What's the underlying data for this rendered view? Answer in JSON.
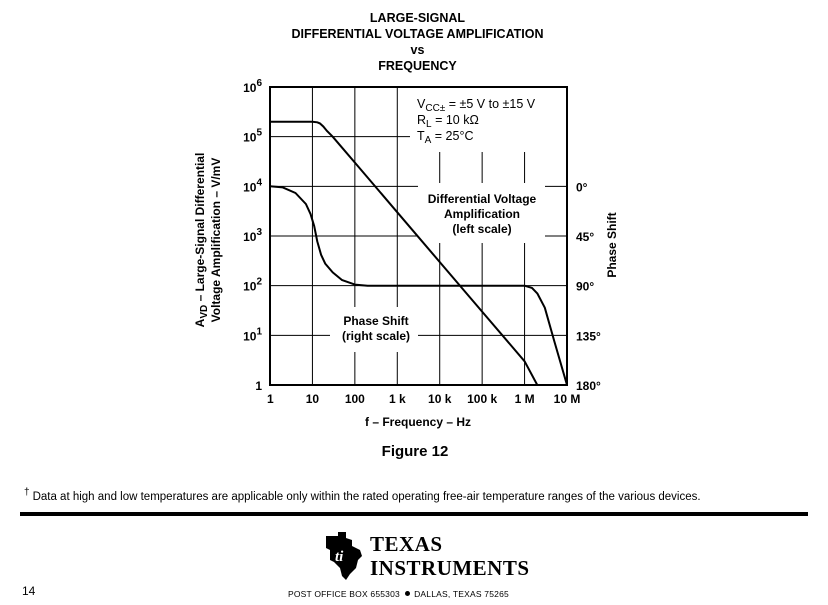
{
  "chart_data": {
    "type": "line",
    "title_lines": [
      "LARGE-SIGNAL",
      "DIFFERENTIAL VOLTAGE AMPLIFICATION",
      "vs",
      "FREQUENCY"
    ],
    "xlabel": "f – Frequency – Hz",
    "ylabel_lines": [
      "A",
      "VD",
      " – Large-Signal Differential",
      "Voltage Amplification – V/mV"
    ],
    "ylabel2": "Phase Shift",
    "x_scale": "log",
    "xlim": [
      1,
      10000000
    ],
    "x_ticks": [
      1,
      10,
      100,
      1000,
      10000,
      100000,
      1000000,
      10000000
    ],
    "x_tick_labels": [
      "1",
      "10",
      "100",
      "1 k",
      "10 k",
      "100 k",
      "1 M",
      "10 M"
    ],
    "y_scale": "log",
    "ylim": [
      1,
      1000000
    ],
    "y_ticks": [
      1,
      10,
      100,
      1000,
      10000,
      100000,
      1000000
    ],
    "y_tick_labels": [
      {
        "base": "1",
        "exp": ""
      },
      {
        "base": "10",
        "exp": "1"
      },
      {
        "base": "10",
        "exp": "2"
      },
      {
        "base": "10",
        "exp": "3"
      },
      {
        "base": "10",
        "exp": "4"
      },
      {
        "base": "10",
        "exp": "5"
      },
      {
        "base": "10",
        "exp": "6"
      }
    ],
    "y2_ticks": [
      0,
      45,
      90,
      135,
      180
    ],
    "y2_tick_labels": [
      "0°",
      "45°",
      "90°",
      "135°",
      "180°"
    ],
    "y2_range_deg": [
      0,
      180
    ],
    "grid": true,
    "conditions": [
      {
        "pre": "V",
        "sub": "CC±",
        "post": " = ±5 V to ±15 V"
      },
      {
        "pre": "R",
        "sub": "L",
        "post": " = 10 kΩ"
      },
      {
        "pre": "T",
        "sub": "A",
        "post": " = 25°C"
      }
    ],
    "annotations": {
      "amplification": [
        "Differential Voltage",
        "Amplification",
        "(left scale)"
      ],
      "phase": [
        "Phase Shift",
        "(right scale)"
      ]
    },
    "series": [
      {
        "axis": "left",
        "x": [
          1,
          10,
          13,
          15,
          18,
          22,
          30,
          50,
          100,
          1000,
          10000,
          100000,
          1000000,
          2000000
        ],
        "y": [
          200000,
          200000,
          195000,
          185000,
          160000,
          130000,
          100000,
          60000,
          30000,
          3000,
          300,
          30,
          3,
          1
        ]
      },
      {
        "axis": "right",
        "x": [
          1,
          2,
          4,
          7,
          9,
          11,
          13,
          16,
          20,
          30,
          50,
          100,
          200,
          1000,
          10000,
          100000,
          1000000,
          1500000,
          2000000,
          3000000,
          5000000,
          10000000
        ],
        "y": [
          0,
          1,
          6,
          16,
          25,
          36,
          50,
          62,
          70,
          78,
          85,
          89,
          90,
          90,
          90,
          90,
          90,
          92,
          97,
          110,
          140,
          180
        ]
      }
    ]
  },
  "figure_caption": "Figure 12",
  "footnote": {
    "mark": "†",
    "text": "Data at high and low temperatures are applicable only within the rated operating free-air temperature ranges of the various devices."
  },
  "logo": {
    "line1": "TEXAS",
    "line2": "INSTRUMENTS",
    "icon": "ti-state-logo"
  },
  "page_number": "14",
  "address": {
    "part1": "POST OFFICE BOX 655303",
    "part2": "DALLAS, TEXAS 75265"
  }
}
